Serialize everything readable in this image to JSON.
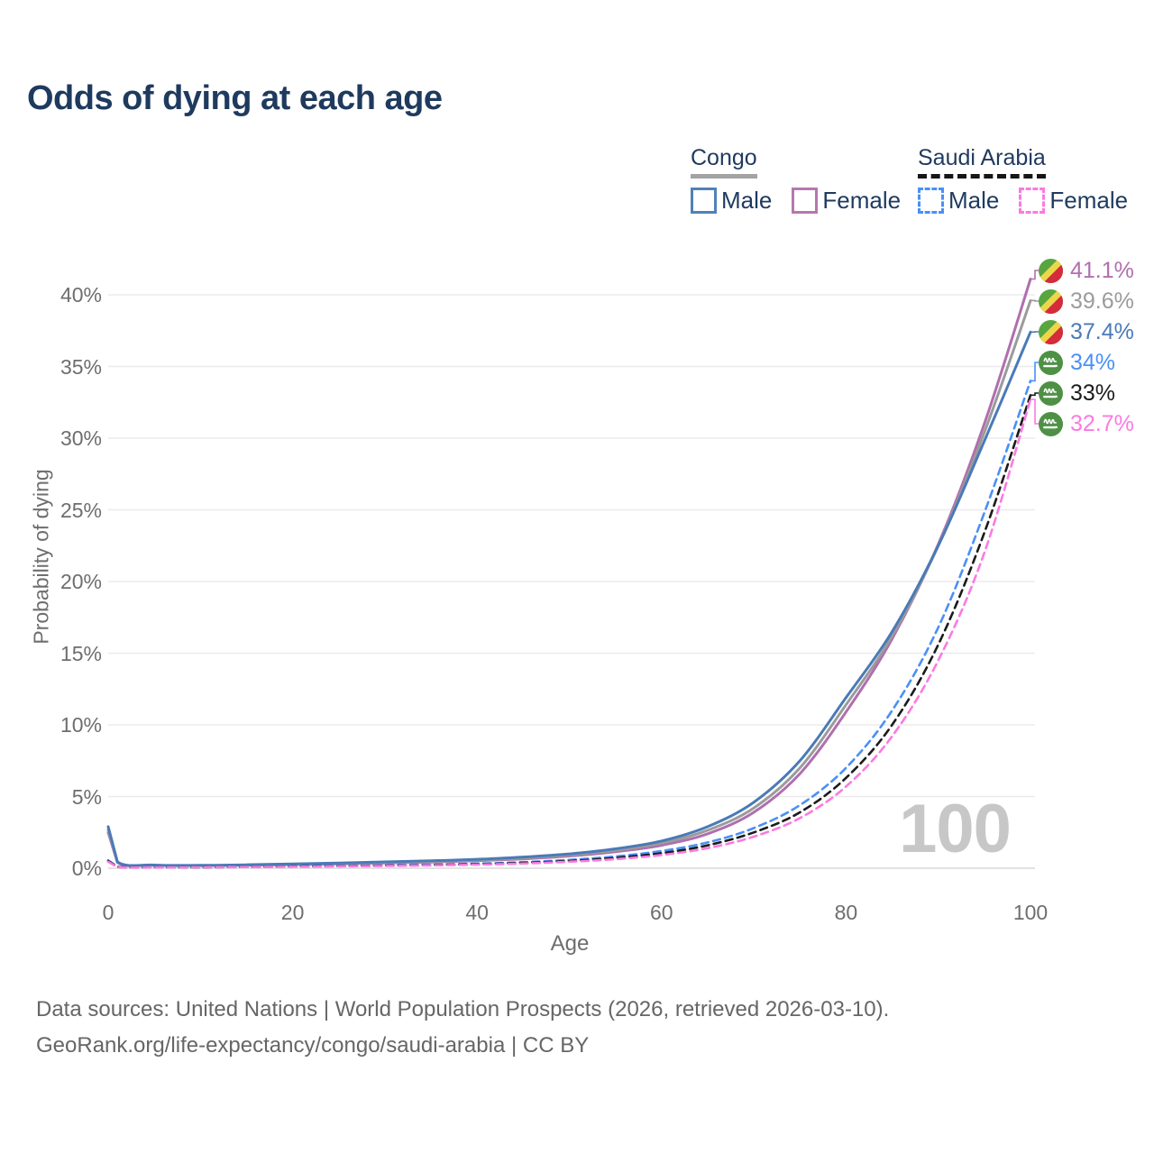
{
  "title": "Odds of dying at each age",
  "legend": {
    "congo": {
      "title": "Congo",
      "male_label": "Male",
      "female_label": "Female"
    },
    "saudi": {
      "title": "Saudi Arabia",
      "male_label": "Male",
      "female_label": "Female"
    }
  },
  "axes": {
    "y": {
      "title": "Probability of dying",
      "tick_labels": [
        "0%",
        "5%",
        "10%",
        "15%",
        "20%",
        "25%",
        "30%",
        "35%",
        "40%"
      ],
      "tick_values": [
        0,
        5,
        10,
        15,
        20,
        25,
        30,
        35,
        40
      ]
    },
    "x": {
      "title": "Age",
      "tick_labels": [
        "0",
        "20",
        "40",
        "60",
        "80",
        "100"
      ],
      "tick_values": [
        0,
        20,
        40,
        60,
        80,
        100
      ]
    }
  },
  "watermark": "100",
  "footer": {
    "line1": "Data sources: United Nations | World Population Prospects (2026, retrieved 2026-03-10).",
    "line2": "GeoRank.org/life-expectancy/congo/saudi-arabia | CC BY"
  },
  "colors": {
    "title_text": "#1f3a5f",
    "axis_text": "#6e6e6e",
    "grid": "#ebebeb",
    "grid_zero": "#d8d8d8",
    "watermark": "#c7c7c7",
    "congo_male": "#4a7ab7",
    "congo_female": "#b06fae",
    "congo_both": "#9b9b9b",
    "saudi_male": "#4a90f7",
    "saudi_both": "#1b1b1b",
    "saudi_female": "#fb7ae0",
    "flag_congo_green": "#58a63f",
    "flag_congo_yellow": "#eed64b",
    "flag_congo_red": "#d52b3b",
    "flag_saudi_green": "#4e9145"
  },
  "chart_data": {
    "type": "line",
    "title": "Odds of dying at each age",
    "xlabel": "Age",
    "ylabel": "Probability of dying",
    "xlim": [
      0,
      100
    ],
    "ylim": [
      0,
      42
    ],
    "grid": "horizontal-only",
    "legend_position": "top-right",
    "x_ages": [
      0,
      1,
      5,
      10,
      15,
      20,
      25,
      30,
      35,
      40,
      45,
      50,
      55,
      60,
      65,
      70,
      75,
      80,
      85,
      90,
      95,
      100
    ],
    "series": [
      {
        "name": "Congo Female",
        "country": "Congo",
        "sex": "Female",
        "color": "#b06fae",
        "dash": false,
        "end_label": "41.1%",
        "values": [
          2.5,
          0.4,
          0.2,
          0.18,
          0.2,
          0.25,
          0.3,
          0.36,
          0.43,
          0.52,
          0.65,
          0.85,
          1.15,
          1.6,
          2.4,
          3.9,
          6.6,
          10.9,
          16.0,
          22.6,
          31.0,
          41.1
        ]
      },
      {
        "name": "Congo Both sexes",
        "country": "Congo",
        "sex": "Both",
        "color": "#9b9b9b",
        "dash": false,
        "end_label": "39.6%",
        "values": [
          2.7,
          0.42,
          0.21,
          0.19,
          0.22,
          0.27,
          0.33,
          0.4,
          0.47,
          0.57,
          0.71,
          0.92,
          1.25,
          1.75,
          2.65,
          4.2,
          7.0,
          11.4,
          16.2,
          22.5,
          30.4,
          39.6
        ]
      },
      {
        "name": "Congo Male",
        "country": "Congo",
        "sex": "Male",
        "color": "#4a7ab7",
        "dash": false,
        "end_label": "37.4%",
        "values": [
          2.9,
          0.45,
          0.22,
          0.2,
          0.24,
          0.3,
          0.36,
          0.44,
          0.52,
          0.62,
          0.78,
          1.0,
          1.35,
          1.9,
          2.9,
          4.6,
          7.5,
          11.9,
          16.5,
          22.5,
          29.8,
          37.4
        ]
      },
      {
        "name": "Saudi Arabia Male",
        "country": "Saudi Arabia",
        "sex": "Male",
        "color": "#4a90f7",
        "dash": true,
        "end_label": "34%",
        "values": [
          0.55,
          0.1,
          0.06,
          0.07,
          0.1,
          0.14,
          0.17,
          0.2,
          0.25,
          0.32,
          0.42,
          0.58,
          0.82,
          1.2,
          1.8,
          2.8,
          4.4,
          7.0,
          11.0,
          16.8,
          24.8,
          34.0
        ]
      },
      {
        "name": "Saudi Arabia Both sexes",
        "country": "Saudi Arabia",
        "sex": "Both",
        "color": "#1b1b1b",
        "dash": true,
        "end_label": "33%",
        "values": [
          0.5,
          0.09,
          0.055,
          0.065,
          0.09,
          0.12,
          0.15,
          0.18,
          0.22,
          0.28,
          0.37,
          0.5,
          0.72,
          1.05,
          1.6,
          2.5,
          3.9,
          6.3,
          10.0,
          15.6,
          23.4,
          33.0
        ]
      },
      {
        "name": "Saudi Arabia Female",
        "country": "Saudi Arabia",
        "sex": "Female",
        "color": "#fb7ae0",
        "dash": true,
        "end_label": "32.7%",
        "values": [
          0.45,
          0.08,
          0.05,
          0.06,
          0.08,
          0.1,
          0.13,
          0.16,
          0.2,
          0.25,
          0.33,
          0.45,
          0.63,
          0.92,
          1.4,
          2.2,
          3.5,
          5.7,
          9.2,
          14.5,
          22.0,
          32.7
        ]
      }
    ]
  }
}
